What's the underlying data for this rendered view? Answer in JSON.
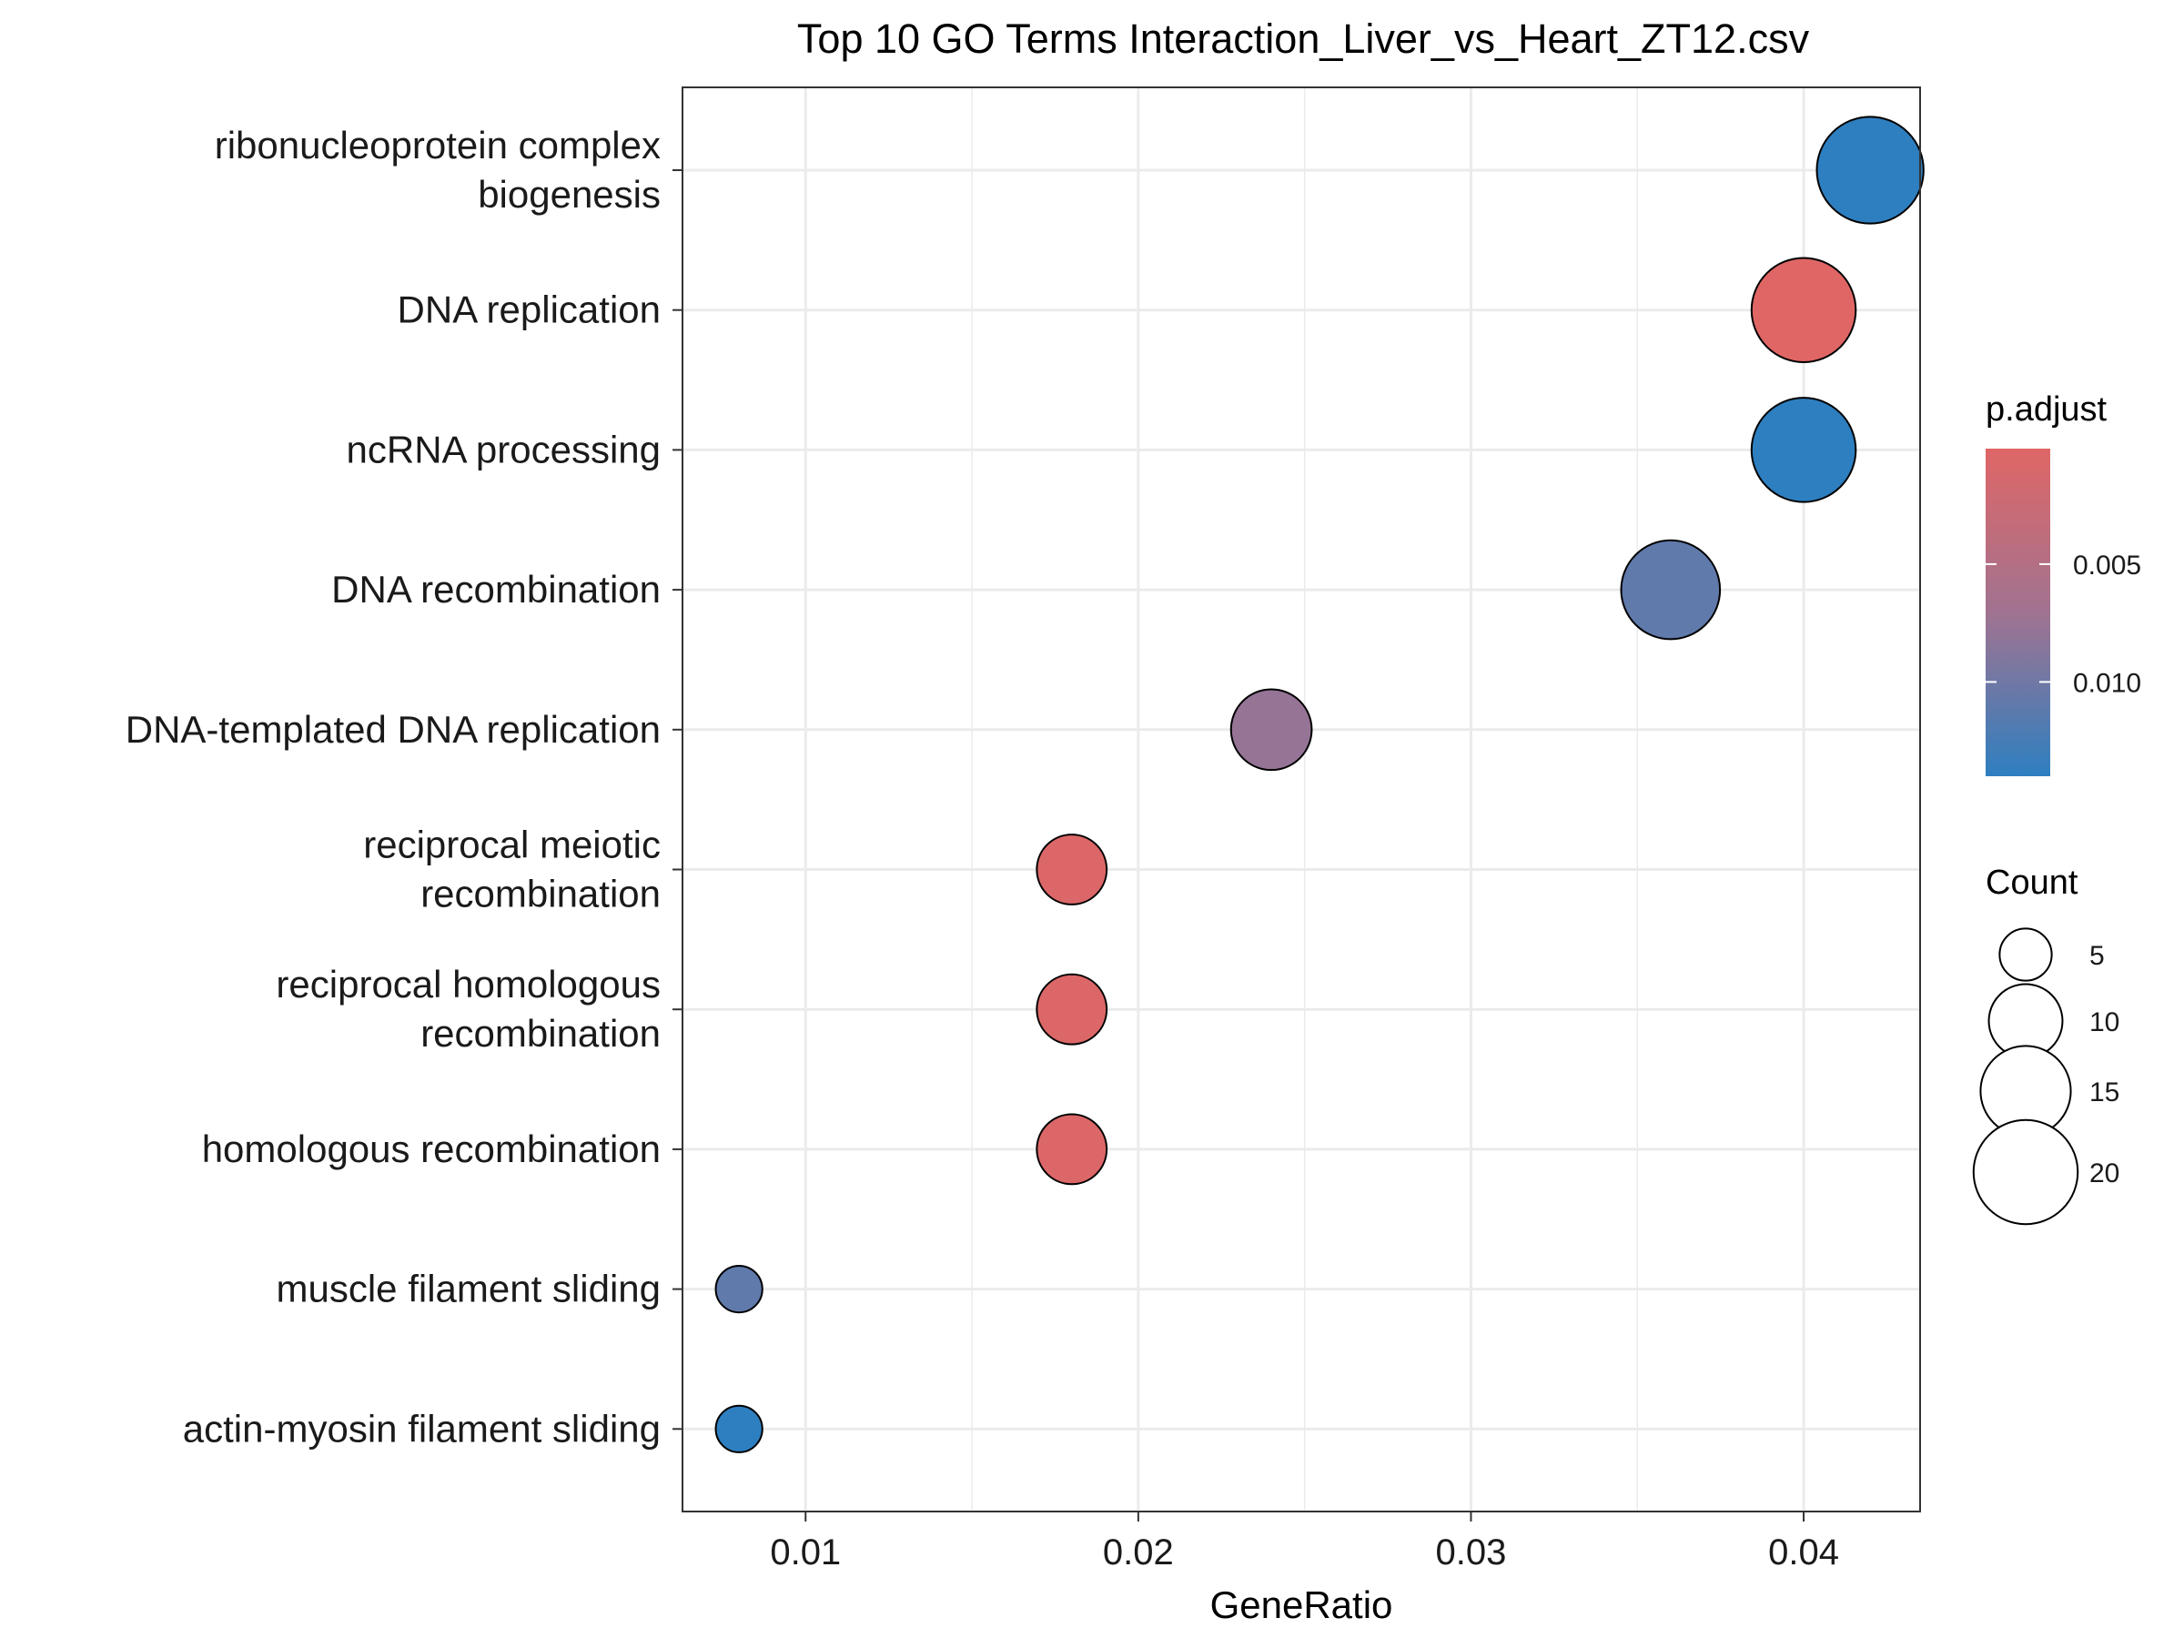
{
  "chart_data": {
    "type": "scatter",
    "title": "Top 10 GO Terms Interaction_Liver_vs_Heart_ZT12.csv",
    "xlabel": "GeneRatio",
    "ylabel": "",
    "xlim": [
      0.0063,
      0.0435
    ],
    "x_ticks": [
      0.01,
      0.02,
      0.03,
      0.04
    ],
    "x_tick_labels": [
      "0.01",
      "0.02",
      "0.03",
      "0.04"
    ],
    "grid": true,
    "legend_position": "right",
    "categories": [
      [
        "ribonucleoprotein complex",
        "biogenesis"
      ],
      [
        "DNA replication"
      ],
      [
        "ncRNA processing"
      ],
      [
        "DNA recombination"
      ],
      [
        "DNA-templated DNA replication"
      ],
      [
        "reciprocal meiotic",
        "recombination"
      ],
      [
        "reciprocal homologous",
        "recombination"
      ],
      [
        "homologous recombination"
      ],
      [
        "muscle filament sliding"
      ],
      [
        "actin-myosin filament sliding"
      ]
    ],
    "points": [
      {
        "gene_ratio": 0.042,
        "count": 21,
        "p_adjust": 0.014
      },
      {
        "gene_ratio": 0.04,
        "count": 20,
        "p_adjust": 0.0001
      },
      {
        "gene_ratio": 0.04,
        "count": 20,
        "p_adjust": 0.014
      },
      {
        "gene_ratio": 0.036,
        "count": 18,
        "p_adjust": 0.011
      },
      {
        "gene_ratio": 0.024,
        "count": 12,
        "p_adjust": 0.0078
      },
      {
        "gene_ratio": 0.018,
        "count": 9,
        "p_adjust": 0.0005
      },
      {
        "gene_ratio": 0.018,
        "count": 9,
        "p_adjust": 0.0005
      },
      {
        "gene_ratio": 0.018,
        "count": 9,
        "p_adjust": 0.0005
      },
      {
        "gene_ratio": 0.008,
        "count": 4,
        "p_adjust": 0.011
      },
      {
        "gene_ratio": 0.008,
        "count": 4,
        "p_adjust": 0.014
      }
    ],
    "color_legend": {
      "title": "p.adjust",
      "range": [
        0.0001,
        0.014
      ],
      "low_color": "#e06666",
      "mid_color": "#a17391",
      "high_color": "#2e7fc0",
      "ticks": [
        0.005,
        0.01
      ],
      "tick_labels": [
        "0.005",
        "0.010"
      ]
    },
    "size_legend": {
      "title": "Count",
      "values": [
        5,
        10,
        15,
        20
      ],
      "labels": [
        "5",
        "10",
        "15",
        "20"
      ]
    }
  }
}
